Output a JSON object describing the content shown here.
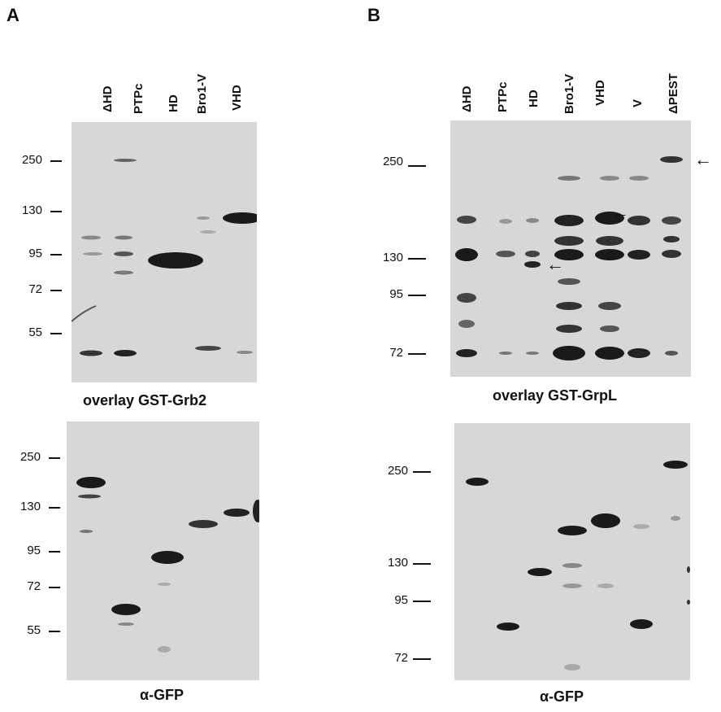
{
  "panels": {
    "A": {
      "letter": "A",
      "lanes": [
        "ΔHD",
        "PTPc",
        "HD",
        "Bro1-V",
        "VHD"
      ],
      "overlay_caption": "overlay GST-Grb2",
      "overlay_markers": [
        "250",
        "130",
        "95",
        "72",
        "55"
      ],
      "gfp_caption": "α-GFP",
      "gfp_markers": [
        "250",
        "130",
        "95",
        "72",
        "55"
      ]
    },
    "B": {
      "letter": "B",
      "lanes": [
        "ΔHD",
        "PTPc",
        "HD",
        "Bro1-V",
        "VHD",
        "V",
        "ΔPEST"
      ],
      "overlay_caption": "overlay GST-GrpL",
      "overlay_markers": [
        "250",
        "130",
        "95",
        "72"
      ],
      "gfp_caption": "α-GFP",
      "gfp_markers": [
        "250",
        "130",
        "95",
        "72"
      ]
    }
  },
  "colors": {
    "blot": "#d7d7d7",
    "band": "#1a1a1a"
  }
}
